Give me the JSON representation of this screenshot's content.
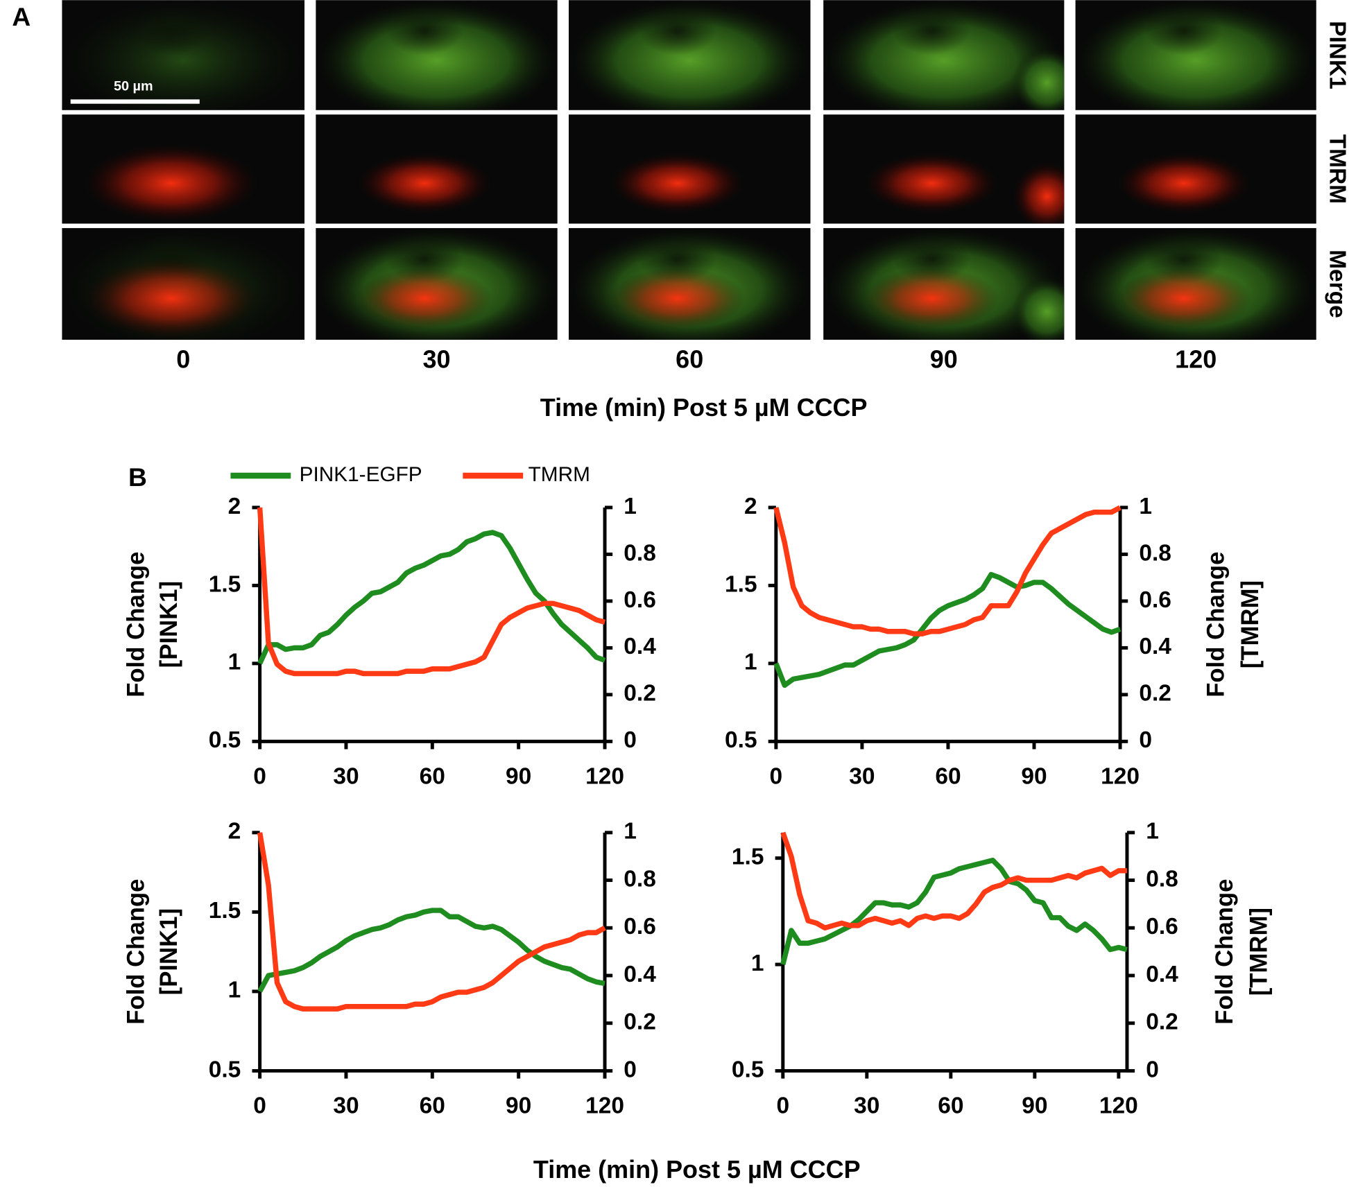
{
  "panel_a": {
    "label": "A",
    "scale_bar": "50 µm",
    "rows": [
      "PINK1",
      "TMRM",
      "Merge"
    ],
    "times": [
      0,
      30,
      60,
      90,
      120
    ],
    "xlabel": "Time (min) Post 5 µM CCCP"
  },
  "panel_b": {
    "label": "B",
    "xlabel": "Time (min) Post 5 µM CCCP"
  },
  "chart_data": [
    {
      "type": "line",
      "x": [
        0,
        3,
        6,
        9,
        12,
        15,
        18,
        21,
        24,
        27,
        30,
        33,
        36,
        39,
        42,
        45,
        48,
        51,
        54,
        57,
        60,
        63,
        66,
        69,
        72,
        75,
        78,
        81,
        84,
        87,
        90,
        93,
        96,
        99,
        102,
        105,
        108,
        111,
        114,
        117,
        120
      ],
      "series": [
        {
          "name": "PINK1-EGFP",
          "color": "#1e8c1e",
          "values": [
            1.0,
            1.12,
            1.12,
            1.09,
            1.1,
            1.1,
            1.12,
            1.18,
            1.2,
            1.25,
            1.31,
            1.36,
            1.4,
            1.45,
            1.46,
            1.49,
            1.52,
            1.58,
            1.61,
            1.63,
            1.66,
            1.69,
            1.7,
            1.73,
            1.78,
            1.8,
            1.83,
            1.84,
            1.82,
            1.74,
            1.64,
            1.54,
            1.45,
            1.4,
            1.32,
            1.25,
            1.2,
            1.15,
            1.1,
            1.04,
            1.02
          ]
        },
        {
          "name": "TMRM",
          "color": "#ff3a14",
          "axis": "y2",
          "values": [
            1.0,
            0.42,
            0.33,
            0.3,
            0.29,
            0.29,
            0.29,
            0.29,
            0.29,
            0.29,
            0.3,
            0.3,
            0.29,
            0.29,
            0.29,
            0.29,
            0.29,
            0.3,
            0.3,
            0.3,
            0.31,
            0.31,
            0.31,
            0.32,
            0.33,
            0.34,
            0.36,
            0.43,
            0.5,
            0.53,
            0.55,
            0.57,
            0.58,
            0.59,
            0.59,
            0.58,
            0.57,
            0.56,
            0.54,
            0.52,
            0.51
          ]
        }
      ],
      "xlim": [
        0,
        120
      ],
      "xticks": [
        0,
        30,
        60,
        90,
        120
      ],
      "ylim": [
        0.5,
        2
      ],
      "yticks": [
        0.5,
        1,
        1.5,
        2
      ],
      "y2lim": [
        0,
        1
      ],
      "y2ticks": [
        0,
        0.2,
        0.4,
        0.6,
        0.8,
        1
      ],
      "ylabel": [
        "Fold Change",
        "[PINK1]"
      ]
    },
    {
      "type": "line",
      "x": [
        0,
        3,
        6,
        9,
        12,
        15,
        18,
        21,
        24,
        27,
        30,
        33,
        36,
        39,
        42,
        45,
        48,
        51,
        54,
        57,
        60,
        63,
        66,
        69,
        72,
        75,
        78,
        81,
        84,
        87,
        90,
        93,
        96,
        99,
        102,
        105,
        108,
        111,
        114,
        117,
        120
      ],
      "series": [
        {
          "color": "#1e8c1e",
          "values": [
            1.0,
            0.86,
            0.9,
            0.91,
            0.92,
            0.93,
            0.95,
            0.97,
            0.99,
            0.99,
            1.02,
            1.05,
            1.08,
            1.09,
            1.1,
            1.12,
            1.15,
            1.22,
            1.29,
            1.34,
            1.37,
            1.39,
            1.41,
            1.44,
            1.48,
            1.57,
            1.55,
            1.52,
            1.49,
            1.5,
            1.52,
            1.52,
            1.48,
            1.43,
            1.38,
            1.34,
            1.3,
            1.26,
            1.22,
            1.2,
            1.22
          ]
        },
        {
          "color": "#ff3a14",
          "axis": "y2",
          "values": [
            1.0,
            0.85,
            0.66,
            0.58,
            0.55,
            0.53,
            0.52,
            0.51,
            0.5,
            0.49,
            0.49,
            0.48,
            0.48,
            0.47,
            0.47,
            0.47,
            0.46,
            0.46,
            0.47,
            0.47,
            0.48,
            0.49,
            0.5,
            0.52,
            0.53,
            0.58,
            0.58,
            0.58,
            0.64,
            0.72,
            0.78,
            0.84,
            0.89,
            0.91,
            0.93,
            0.95,
            0.97,
            0.98,
            0.98,
            0.98,
            1.0
          ]
        }
      ],
      "xlim": [
        0,
        120
      ],
      "xticks": [
        0,
        30,
        60,
        90,
        120
      ],
      "ylim": [
        0.5,
        2
      ],
      "yticks": [
        0.5,
        1,
        1.5,
        2
      ],
      "y2lim": [
        0,
        1
      ],
      "y2ticks": [
        0,
        0.2,
        0.4,
        0.6,
        0.8,
        1
      ],
      "y2label": [
        "Fold Change",
        "[TMRM]"
      ]
    },
    {
      "type": "line",
      "x": [
        0,
        3,
        6,
        9,
        12,
        15,
        18,
        21,
        24,
        27,
        30,
        33,
        36,
        39,
        42,
        45,
        48,
        51,
        54,
        57,
        60,
        63,
        66,
        69,
        72,
        75,
        78,
        81,
        84,
        87,
        90,
        93,
        96,
        99,
        102,
        105,
        108,
        111,
        114,
        117,
        120
      ],
      "series": [
        {
          "color": "#1e8c1e",
          "values": [
            1.0,
            1.1,
            1.11,
            1.12,
            1.13,
            1.15,
            1.18,
            1.22,
            1.25,
            1.28,
            1.32,
            1.35,
            1.37,
            1.39,
            1.4,
            1.42,
            1.45,
            1.47,
            1.48,
            1.5,
            1.51,
            1.51,
            1.47,
            1.47,
            1.44,
            1.41,
            1.4,
            1.41,
            1.39,
            1.35,
            1.31,
            1.26,
            1.22,
            1.19,
            1.17,
            1.15,
            1.14,
            1.11,
            1.08,
            1.06,
            1.05
          ]
        },
        {
          "color": "#ff3a14",
          "axis": "y2",
          "values": [
            1.0,
            0.78,
            0.37,
            0.29,
            0.27,
            0.26,
            0.26,
            0.26,
            0.26,
            0.26,
            0.27,
            0.27,
            0.27,
            0.27,
            0.27,
            0.27,
            0.27,
            0.27,
            0.28,
            0.28,
            0.29,
            0.31,
            0.32,
            0.33,
            0.33,
            0.34,
            0.35,
            0.37,
            0.4,
            0.43,
            0.46,
            0.48,
            0.5,
            0.52,
            0.53,
            0.54,
            0.55,
            0.57,
            0.58,
            0.58,
            0.6
          ]
        }
      ],
      "xlim": [
        0,
        120
      ],
      "xticks": [
        0,
        30,
        60,
        90,
        120
      ],
      "ylim": [
        0.5,
        2
      ],
      "yticks": [
        0.5,
        1,
        1.5,
        2
      ],
      "y2lim": [
        0,
        1
      ],
      "y2ticks": [
        0,
        0.2,
        0.4,
        0.6,
        0.8,
        1
      ],
      "ylabel": [
        "Fold Change",
        "[PINK1]"
      ]
    },
    {
      "type": "line",
      "x": [
        0,
        3,
        6,
        9,
        12,
        15,
        18,
        21,
        24,
        27,
        30,
        33,
        36,
        39,
        42,
        45,
        48,
        51,
        54,
        57,
        60,
        63,
        66,
        69,
        72,
        75,
        78,
        81,
        84,
        87,
        90,
        93,
        96,
        99,
        102,
        105,
        108,
        111,
        114,
        117,
        120,
        123
      ],
      "series": [
        {
          "color": "#1e8c1e",
          "values": [
            1.0,
            1.16,
            1.1,
            1.1,
            1.11,
            1.12,
            1.14,
            1.16,
            1.18,
            1.21,
            1.25,
            1.29,
            1.29,
            1.28,
            1.28,
            1.27,
            1.29,
            1.34,
            1.41,
            1.42,
            1.43,
            1.45,
            1.46,
            1.47,
            1.48,
            1.49,
            1.45,
            1.39,
            1.38,
            1.35,
            1.3,
            1.29,
            1.22,
            1.22,
            1.18,
            1.16,
            1.19,
            1.16,
            1.12,
            1.07,
            1.08,
            1.07
          ]
        },
        {
          "color": "#ff3a14",
          "axis": "y2",
          "values": [
            1.0,
            0.9,
            0.74,
            0.63,
            0.62,
            0.6,
            0.61,
            0.62,
            0.61,
            0.61,
            0.63,
            0.64,
            0.63,
            0.62,
            0.63,
            0.61,
            0.64,
            0.65,
            0.64,
            0.65,
            0.65,
            0.64,
            0.66,
            0.7,
            0.75,
            0.77,
            0.78,
            0.8,
            0.81,
            0.8,
            0.8,
            0.8,
            0.8,
            0.81,
            0.82,
            0.81,
            0.83,
            0.84,
            0.85,
            0.82,
            0.84,
            0.84
          ]
        }
      ],
      "xlim": [
        0,
        123
      ],
      "xticks": [
        0,
        30,
        60,
        90,
        120
      ],
      "ylim": [
        0.5,
        1.62
      ],
      "yticks": [
        0.5,
        1,
        1.5
      ],
      "y2lim": [
        0,
        1
      ],
      "y2ticks": [
        0,
        0.2,
        0.4,
        0.6,
        0.8,
        1
      ],
      "y2label": [
        "Fold Change",
        "[TMRM]"
      ]
    }
  ]
}
